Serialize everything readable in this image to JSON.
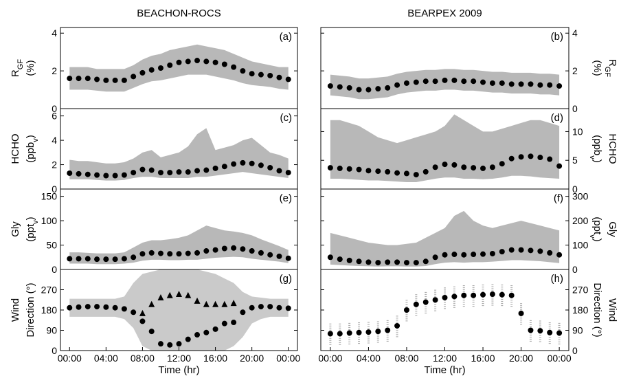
{
  "chart_data": [
    {
      "type": "scatter",
      "title": "BEACHON-ROCS",
      "label": "(a)",
      "ylabel": [
        [
          {
            "text": "R"
          },
          {
            "text": "GF",
            "sub": true
          }
        ],
        [
          {
            "text": "(%)"
          }
        ]
      ],
      "x": [
        0,
        1,
        2,
        3,
        4,
        5,
        6,
        7,
        8,
        9,
        10,
        11,
        12,
        13,
        14,
        15,
        16,
        17,
        18,
        19,
        20,
        21,
        22,
        23,
        24
      ],
      "xlim": [
        -1,
        25
      ],
      "ylim": [
        0,
        4.3
      ],
      "yticks": [
        0,
        2,
        4
      ],
      "range_color": "#a0a0a0",
      "range_style": "band",
      "range_low": [
        1.0,
        1.0,
        1.0,
        0.95,
        0.9,
        0.9,
        0.9,
        1.1,
        1.3,
        1.45,
        1.5,
        1.6,
        1.7,
        1.8,
        1.8,
        1.8,
        1.7,
        1.6,
        1.5,
        1.35,
        1.25,
        1.2,
        1.15,
        1.05,
        1.0
      ],
      "range_high": [
        2.2,
        2.2,
        2.2,
        2.1,
        2.1,
        2.1,
        2.1,
        2.3,
        2.6,
        2.8,
        2.9,
        3.1,
        3.2,
        3.3,
        3.4,
        3.3,
        3.2,
        3.1,
        2.9,
        2.7,
        2.5,
        2.4,
        2.3,
        2.2,
        2.2
      ],
      "series": [
        {
          "color": "#000000",
          "marker": "circle",
          "values": [
            1.6,
            1.6,
            1.6,
            1.55,
            1.5,
            1.5,
            1.5,
            1.7,
            1.9,
            2.05,
            2.15,
            2.3,
            2.45,
            2.5,
            2.55,
            2.5,
            2.45,
            2.35,
            2.2,
            2.0,
            1.85,
            1.8,
            1.75,
            1.65,
            1.55
          ]
        }
      ]
    },
    {
      "type": "scatter",
      "title": "BEARPEX 2009",
      "label": "(b)",
      "ylabel": [
        [
          {
            "text": "R"
          },
          {
            "text": "GF",
            "sub": true
          }
        ],
        [
          {
            "text": "(%)"
          }
        ]
      ],
      "x": [
        0,
        1,
        2,
        3,
        4,
        5,
        6,
        7,
        8,
        9,
        10,
        11,
        12,
        13,
        14,
        15,
        16,
        17,
        18,
        19,
        20,
        21,
        22,
        23,
        24
      ],
      "xlim": [
        -1,
        25
      ],
      "ylim": [
        0,
        4.3
      ],
      "yticks": [
        0,
        2,
        4
      ],
      "range_color": "#a0a0a0",
      "range_style": "band",
      "range_low": [
        0.7,
        0.65,
        0.6,
        0.5,
        0.5,
        0.55,
        0.6,
        0.75,
        0.85,
        0.9,
        0.95,
        0.95,
        1.0,
        1.0,
        0.95,
        0.95,
        0.9,
        0.85,
        0.85,
        0.8,
        0.8,
        0.8,
        0.75,
        0.75,
        0.7
      ],
      "range_high": [
        1.8,
        1.75,
        1.7,
        1.6,
        1.6,
        1.65,
        1.7,
        1.85,
        1.95,
        2.0,
        2.05,
        2.05,
        2.1,
        2.1,
        2.05,
        2.05,
        2.0,
        1.95,
        1.95,
        1.9,
        1.9,
        1.9,
        1.85,
        1.85,
        1.8
      ],
      "series": [
        {
          "color": "#000000",
          "marker": "circle",
          "values": [
            1.2,
            1.15,
            1.1,
            1.0,
            1.0,
            1.05,
            1.1,
            1.25,
            1.35,
            1.4,
            1.45,
            1.45,
            1.5,
            1.5,
            1.45,
            1.45,
            1.4,
            1.35,
            1.35,
            1.3,
            1.3,
            1.3,
            1.25,
            1.25,
            1.2
          ]
        }
      ]
    },
    {
      "type": "scatter",
      "label": "(c)",
      "ylabel": [
        [
          {
            "text": "HCHO"
          }
        ],
        [
          {
            "text": "(ppb"
          },
          {
            "text": "v",
            "sub": true
          },
          {
            "text": ")"
          }
        ]
      ],
      "x": [
        0,
        1,
        2,
        3,
        4,
        5,
        6,
        7,
        8,
        9,
        10,
        11,
        12,
        13,
        14,
        15,
        16,
        17,
        18,
        19,
        20,
        21,
        22,
        23,
        24
      ],
      "xlim": [
        -1,
        25
      ],
      "ylim": [
        0,
        6.6
      ],
      "yticks": [
        0,
        2,
        4,
        6
      ],
      "range_color": "#a0a0a0",
      "range_style": "band",
      "range_low": [
        0.8,
        0.8,
        0.8,
        0.75,
        0.7,
        0.7,
        0.75,
        0.9,
        1.0,
        1.0,
        0.9,
        0.9,
        0.9,
        0.9,
        1.0,
        1.0,
        1.1,
        1.2,
        1.3,
        1.4,
        1.3,
        1.2,
        1.1,
        1.0,
        0.9
      ],
      "range_high": [
        2.4,
        2.3,
        2.3,
        2.2,
        2.1,
        2.1,
        2.2,
        2.5,
        3.0,
        3.2,
        2.6,
        2.8,
        3.0,
        3.5,
        4.5,
        5.0,
        3.2,
        3.4,
        3.6,
        4.0,
        4.2,
        3.6,
        3.0,
        2.8,
        2.5
      ],
      "series": [
        {
          "color": "#000000",
          "marker": "circle",
          "values": [
            1.3,
            1.25,
            1.2,
            1.15,
            1.1,
            1.1,
            1.15,
            1.35,
            1.6,
            1.55,
            1.35,
            1.35,
            1.4,
            1.4,
            1.5,
            1.55,
            1.7,
            1.85,
            2.05,
            2.15,
            2.1,
            1.95,
            1.75,
            1.5,
            1.35
          ]
        }
      ]
    },
    {
      "type": "scatter",
      "label": "(d)",
      "ylabel": [
        [
          {
            "text": "HCHO"
          }
        ],
        [
          {
            "text": "(ppb"
          },
          {
            "text": "v",
            "sub": true
          },
          {
            "text": ")"
          }
        ]
      ],
      "x": [
        0,
        1,
        2,
        3,
        4,
        5,
        6,
        7,
        8,
        9,
        10,
        11,
        12,
        13,
        14,
        15,
        16,
        17,
        18,
        19,
        20,
        21,
        22,
        23,
        24
      ],
      "xlim": [
        -1,
        25
      ],
      "ylim": [
        0,
        14
      ],
      "yticks": [
        0,
        5,
        10
      ],
      "range_color": "#a0a0a0",
      "range_style": "band",
      "range_low": [
        1.8,
        1.8,
        1.7,
        1.6,
        1.5,
        1.5,
        1.4,
        1.3,
        1.2,
        1.2,
        1.5,
        1.8,
        2.0,
        2.0,
        1.8,
        1.8,
        1.7,
        1.8,
        2.0,
        2.3,
        2.3,
        2.2,
        2.0,
        1.9,
        1.8
      ],
      "range_high": [
        12,
        12,
        11.5,
        11,
        10,
        9,
        8.5,
        8,
        8.5,
        9,
        9.5,
        10,
        11,
        13,
        12,
        11,
        10,
        10,
        10.5,
        11,
        11.5,
        12,
        12,
        11.5,
        11
      ],
      "series": [
        {
          "color": "#000000",
          "marker": "circle",
          "values": [
            3.7,
            3.6,
            3.5,
            3.4,
            3.2,
            3.1,
            3.0,
            2.8,
            2.7,
            2.5,
            3.0,
            3.8,
            4.3,
            4.2,
            3.8,
            3.7,
            3.6,
            3.8,
            4.4,
            5.3,
            5.6,
            5.7,
            5.5,
            5.2,
            4.0
          ]
        }
      ]
    },
    {
      "type": "scatter",
      "label": "(e)",
      "ylabel": [
        [
          {
            "text": "Gly"
          }
        ],
        [
          {
            "text": "(ppt"
          },
          {
            "text": "v",
            "sub": true
          },
          {
            "text": ")"
          }
        ]
      ],
      "x": [
        0,
        1,
        2,
        3,
        4,
        5,
        6,
        7,
        8,
        9,
        10,
        11,
        12,
        13,
        14,
        15,
        16,
        17,
        18,
        19,
        20,
        21,
        22,
        23,
        24
      ],
      "xlim": [
        -1,
        25
      ],
      "ylim": [
        0,
        165
      ],
      "yticks": [
        0,
        50,
        100,
        150
      ],
      "range_color": "#a0a0a0",
      "range_style": "band",
      "range_low": [
        12,
        12,
        12,
        11,
        11,
        11,
        12,
        14,
        18,
        20,
        20,
        19,
        19,
        20,
        20,
        22,
        24,
        25,
        26,
        25,
        22,
        20,
        18,
        16,
        13
      ],
      "range_high": [
        35,
        35,
        34,
        33,
        33,
        33,
        35,
        45,
        55,
        60,
        60,
        62,
        65,
        70,
        80,
        90,
        85,
        80,
        78,
        75,
        70,
        62,
        55,
        48,
        40
      ],
      "series": [
        {
          "color": "#000000",
          "marker": "circle",
          "values": [
            22,
            22,
            22,
            21,
            21,
            21,
            22,
            25,
            32,
            34,
            33,
            32,
            32,
            33,
            34,
            38,
            40,
            43,
            44,
            42,
            38,
            34,
            30,
            27,
            23
          ]
        }
      ]
    },
    {
      "type": "scatter",
      "label": "(f)",
      "ylabel": [
        [
          {
            "text": "Gly"
          }
        ],
        [
          {
            "text": "(ppt"
          },
          {
            "text": "v",
            "sub": true
          },
          {
            "text": ")"
          }
        ]
      ],
      "x": [
        0,
        1,
        2,
        3,
        4,
        5,
        6,
        7,
        8,
        9,
        10,
        11,
        12,
        13,
        14,
        15,
        16,
        17,
        18,
        19,
        20,
        21,
        22,
        23,
        24
      ],
      "xlim": [
        -1,
        25
      ],
      "ylim": [
        0,
        330
      ],
      "yticks": [
        0,
        100,
        200,
        300
      ],
      "range_color": "#a0a0a0",
      "range_style": "band",
      "range_low": [
        20,
        18,
        16,
        14,
        13,
        12,
        13,
        13,
        12,
        12,
        14,
        22,
        28,
        30,
        28,
        30,
        30,
        32,
        35,
        38,
        38,
        36,
        34,
        30,
        26
      ],
      "range_high": [
        150,
        140,
        130,
        120,
        110,
        105,
        100,
        100,
        105,
        110,
        130,
        150,
        170,
        220,
        240,
        200,
        180,
        170,
        180,
        190,
        200,
        190,
        180,
        170,
        160
      ],
      "series": [
        {
          "color": "#000000",
          "marker": "circle",
          "values": [
            50,
            42,
            37,
            33,
            30,
            28,
            30,
            30,
            28,
            28,
            33,
            50,
            60,
            62,
            60,
            62,
            63,
            65,
            73,
            80,
            80,
            78,
            75,
            68,
            60
          ]
        }
      ]
    },
    {
      "type": "scatter",
      "label": "(g)",
      "ylabel": [
        [
          {
            "text": "Wind"
          }
        ],
        [
          {
            "text": "Direction (°)"
          }
        ]
      ],
      "x": [
        0,
        1,
        2,
        3,
        4,
        5,
        6,
        7,
        8,
        9,
        10,
        11,
        12,
        13,
        14,
        15,
        16,
        17,
        18,
        19,
        20,
        21,
        22,
        23,
        24
      ],
      "xlim": [
        -1,
        25
      ],
      "xticks": [
        {
          "value": 0,
          "label": "00:00"
        },
        {
          "value": 4,
          "label": "04:00"
        },
        {
          "value": 8,
          "label": "08:00"
        },
        {
          "value": 12,
          "label": "12:00"
        },
        {
          "value": 16,
          "label": "16:00"
        },
        {
          "value": 20,
          "label": "20:00"
        },
        {
          "value": 24,
          "label": "00:00"
        }
      ],
      "xlabel": "Time (hr)",
      "ylim": [
        0,
        360
      ],
      "yticks": [
        0,
        90,
        180,
        270
      ],
      "range_color": "#b8b8b8",
      "range_style": "band",
      "range_low": [
        150,
        150,
        150,
        150,
        150,
        150,
        140,
        100,
        20,
        0,
        0,
        0,
        0,
        0,
        0,
        0,
        0,
        0,
        20,
        60,
        120,
        140,
        150,
        150,
        150
      ],
      "range_high": [
        230,
        230,
        230,
        230,
        230,
        230,
        240,
        300,
        340,
        350,
        360,
        360,
        360,
        360,
        360,
        350,
        340,
        320,
        300,
        260,
        240,
        235,
        230,
        230,
        230
      ],
      "series": [
        {
          "color": "#000000",
          "marker": "circle",
          "values": [
            190,
            193,
            195,
            195,
            193,
            190,
            185,
            170,
            130,
            85,
            30,
            25,
            30,
            50,
            70,
            80,
            95,
            120,
            125,
            170,
            190,
            195,
            195,
            190,
            188
          ]
        },
        {
          "color": "#000000",
          "marker": "triangle",
          "values": [
            null,
            null,
            null,
            null,
            null,
            null,
            null,
            null,
            165,
            205,
            235,
            245,
            250,
            245,
            220,
            205,
            205,
            205,
            210,
            null,
            null,
            null,
            null,
            null,
            null
          ]
        }
      ]
    },
    {
      "type": "scatter",
      "label": "(h)",
      "ylabel": [
        [
          {
            "text": "Wind"
          }
        ],
        [
          {
            "text": "Direction (°)"
          }
        ]
      ],
      "x": [
        0,
        1,
        2,
        3,
        4,
        5,
        6,
        7,
        8,
        9,
        10,
        11,
        12,
        13,
        14,
        15,
        16,
        17,
        18,
        19,
        20,
        21,
        22,
        23,
        24
      ],
      "xlim": [
        -1,
        25
      ],
      "xticks": [
        {
          "value": 0,
          "label": "00:00"
        },
        {
          "value": 4,
          "label": "04:00"
        },
        {
          "value": 8,
          "label": "08:00"
        },
        {
          "value": 12,
          "label": "12:00"
        },
        {
          "value": 16,
          "label": "16:00"
        },
        {
          "value": 20,
          "label": "20:00"
        },
        {
          "value": 24,
          "label": "00:00"
        }
      ],
      "xlabel": "Time (hr)",
      "ylim": [
        0,
        360
      ],
      "yticks": [
        0,
        90,
        180,
        270
      ],
      "range_color": "#a0a0a0",
      "range_style": "bars",
      "range_low": [
        25,
        25,
        28,
        30,
        32,
        35,
        40,
        60,
        130,
        155,
        165,
        175,
        185,
        190,
        195,
        195,
        198,
        200,
        198,
        195,
        115,
        40,
        38,
        30,
        28
      ],
      "range_high": [
        125,
        125,
        128,
        130,
        132,
        135,
        140,
        160,
        230,
        255,
        265,
        275,
        285,
        290,
        295,
        295,
        298,
        300,
        298,
        295,
        215,
        140,
        138,
        130,
        128
      ],
      "series": [
        {
          "color": "#000000",
          "marker": "circle",
          "values": [
            75,
            75,
            78,
            80,
            82,
            85,
            90,
            110,
            180,
            205,
            215,
            225,
            235,
            240,
            245,
            245,
            248,
            250,
            248,
            245,
            165,
            90,
            88,
            80,
            78
          ]
        }
      ]
    }
  ]
}
